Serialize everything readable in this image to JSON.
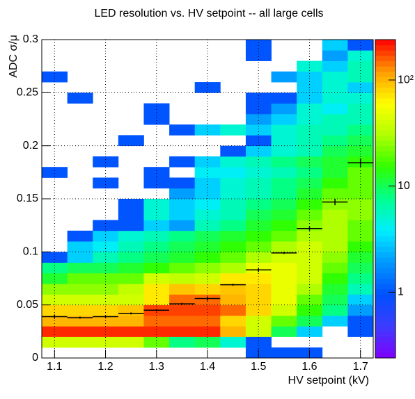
{
  "chart_data": {
    "type": "heatmap",
    "title": "LED resolution vs. HV setpoint -- all large cells",
    "xlabel": "HV setpoint (kV)",
    "ylabel": "ADC σ/μ",
    "xbins": [
      1.075,
      1.125,
      1.175,
      1.225,
      1.275,
      1.325,
      1.375,
      1.425,
      1.475,
      1.525,
      1.575,
      1.625,
      1.675,
      1.725
    ],
    "ybins": [
      0,
      0.01,
      0.02,
      0.03,
      0.04,
      0.05,
      0.06,
      0.07,
      0.08,
      0.09,
      0.1,
      0.11,
      0.12,
      0.13,
      0.14,
      0.15,
      0.16,
      0.17,
      0.18,
      0.19,
      0.2,
      0.21,
      0.22,
      0.23,
      0.24,
      0.25,
      0.26,
      0.27,
      0.28,
      0.29,
      0.3
    ],
    "xlim": [
      1.075,
      1.725
    ],
    "ylim": [
      0,
      0.3
    ],
    "xticks": [
      1.1,
      1.2,
      1.3,
      1.4,
      1.5,
      1.6,
      1.7
    ],
    "yticks": [
      0,
      0.05,
      0.1,
      0.15,
      0.2,
      0.25,
      0.3
    ],
    "zlim": [
      0.24,
      240
    ],
    "zlog": true,
    "zticks": [
      1,
      10,
      {
        "value": 100,
        "label": "10²"
      }
    ],
    "grid": true,
    "colormap": [
      "#8000ff",
      "#3c3cff",
      "#0050ff",
      "#0098ff",
      "#00eeff",
      "#00ff90",
      "#30ff00",
      "#b0ff00",
      "#ffff00",
      "#ff9c00",
      "#ff0000"
    ],
    "z": [
      [
        null,
        null,
        null,
        null,
        null,
        null,
        null,
        null,
        1,
        1,
        1,
        null,
        null
      ],
      [
        40,
        40,
        40,
        40,
        20,
        8,
        10,
        5,
        1,
        null,
        null,
        null,
        null
      ],
      [
        200,
        200,
        200,
        200,
        200,
        200,
        200,
        100,
        40,
        10,
        3,
        null,
        1
      ],
      [
        100,
        100,
        100,
        100,
        150,
        150,
        150,
        80,
        40,
        20,
        10,
        3,
        1
      ],
      [
        80,
        80,
        80,
        90,
        180,
        180,
        180,
        150,
        80,
        40,
        15,
        8,
        2
      ],
      [
        40,
        40,
        40,
        40,
        70,
        150,
        150,
        100,
        80,
        50,
        20,
        10,
        3
      ],
      [
        25,
        25,
        25,
        35,
        70,
        90,
        80,
        90,
        80,
        50,
        30,
        12,
        6
      ],
      [
        12,
        20,
        20,
        20,
        40,
        35,
        40,
        70,
        70,
        50,
        40,
        15,
        8
      ],
      [
        8,
        10,
        10,
        12,
        15,
        20,
        25,
        30,
        50,
        50,
        40,
        20,
        10
      ],
      [
        1,
        3,
        6,
        8,
        10,
        12,
        15,
        20,
        30,
        40,
        40,
        25,
        12
      ],
      [
        null,
        3,
        4,
        6,
        8,
        10,
        12,
        15,
        20,
        30,
        40,
        30,
        15
      ],
      [
        null,
        1,
        3,
        5,
        6,
        8,
        10,
        12,
        15,
        20,
        30,
        30,
        20
      ],
      [
        null,
        null,
        1,
        1,
        3,
        2,
        6,
        8,
        12,
        15,
        25,
        30,
        20
      ],
      [
        null,
        null,
        null,
        1,
        5,
        3,
        5,
        6,
        10,
        12,
        20,
        30,
        25
      ],
      [
        null,
        null,
        null,
        1,
        5,
        3,
        4,
        6,
        8,
        10,
        15,
        25,
        25
      ],
      [
        null,
        null,
        null,
        null,
        null,
        2,
        3,
        5,
        6,
        8,
        12,
        20,
        20
      ],
      [
        null,
        null,
        1,
        null,
        1,
        1,
        3,
        5,
        6,
        8,
        10,
        15,
        20
      ],
      [
        1,
        null,
        null,
        null,
        1,
        null,
        4,
        4,
        5,
        6,
        8,
        12,
        20
      ],
      [
        null,
        null,
        1,
        null,
        null,
        1,
        3,
        5,
        6,
        8,
        10,
        12,
        15
      ],
      [
        null,
        null,
        null,
        null,
        null,
        null,
        null,
        1,
        3,
        5,
        6,
        10,
        12
      ],
      [
        null,
        null,
        null,
        1,
        null,
        null,
        null,
        null,
        1,
        5,
        6,
        8,
        10
      ],
      [
        null,
        null,
        null,
        null,
        null,
        1,
        3,
        5,
        3,
        5,
        6,
        6,
        8
      ],
      [
        null,
        null,
        null,
        null,
        1,
        null,
        null,
        null,
        2,
        3,
        5,
        6,
        6
      ],
      [
        null,
        null,
        null,
        null,
        1,
        null,
        null,
        null,
        1,
        2,
        5,
        4,
        6
      ],
      [
        null,
        1,
        null,
        null,
        null,
        null,
        null,
        null,
        1,
        1,
        3,
        5,
        5
      ],
      [
        null,
        null,
        null,
        null,
        null,
        null,
        1,
        null,
        null,
        null,
        3,
        5,
        3
      ],
      [
        1,
        null,
        null,
        null,
        null,
        null,
        null,
        null,
        null,
        2,
        3,
        5,
        6
      ],
      [
        null,
        null,
        null,
        null,
        null,
        null,
        null,
        null,
        null,
        null,
        5,
        3,
        6
      ],
      [
        null,
        null,
        null,
        null,
        null,
        null,
        null,
        null,
        1,
        null,
        null,
        2,
        5
      ],
      [
        null,
        null,
        null,
        null,
        null,
        null,
        null,
        null,
        1,
        null,
        null,
        3,
        1
      ]
    ],
    "profile": {
      "color": "#000000",
      "x": [
        1.1,
        1.15,
        1.2,
        1.25,
        1.3,
        1.35,
        1.4,
        1.45,
        1.5,
        1.55,
        1.6,
        1.65,
        1.7
      ],
      "values": [
        0.039,
        0.038,
        0.039,
        0.042,
        0.045,
        0.051,
        0.056,
        0.069,
        0.083,
        0.099,
        0.122,
        0.147,
        0.184
      ],
      "errors": [
        0.002,
        0.001,
        0.001,
        0.001,
        0.001,
        0.001,
        0.002,
        0.001,
        0.002,
        0.001,
        0.002,
        0.003,
        0.004
      ]
    }
  }
}
